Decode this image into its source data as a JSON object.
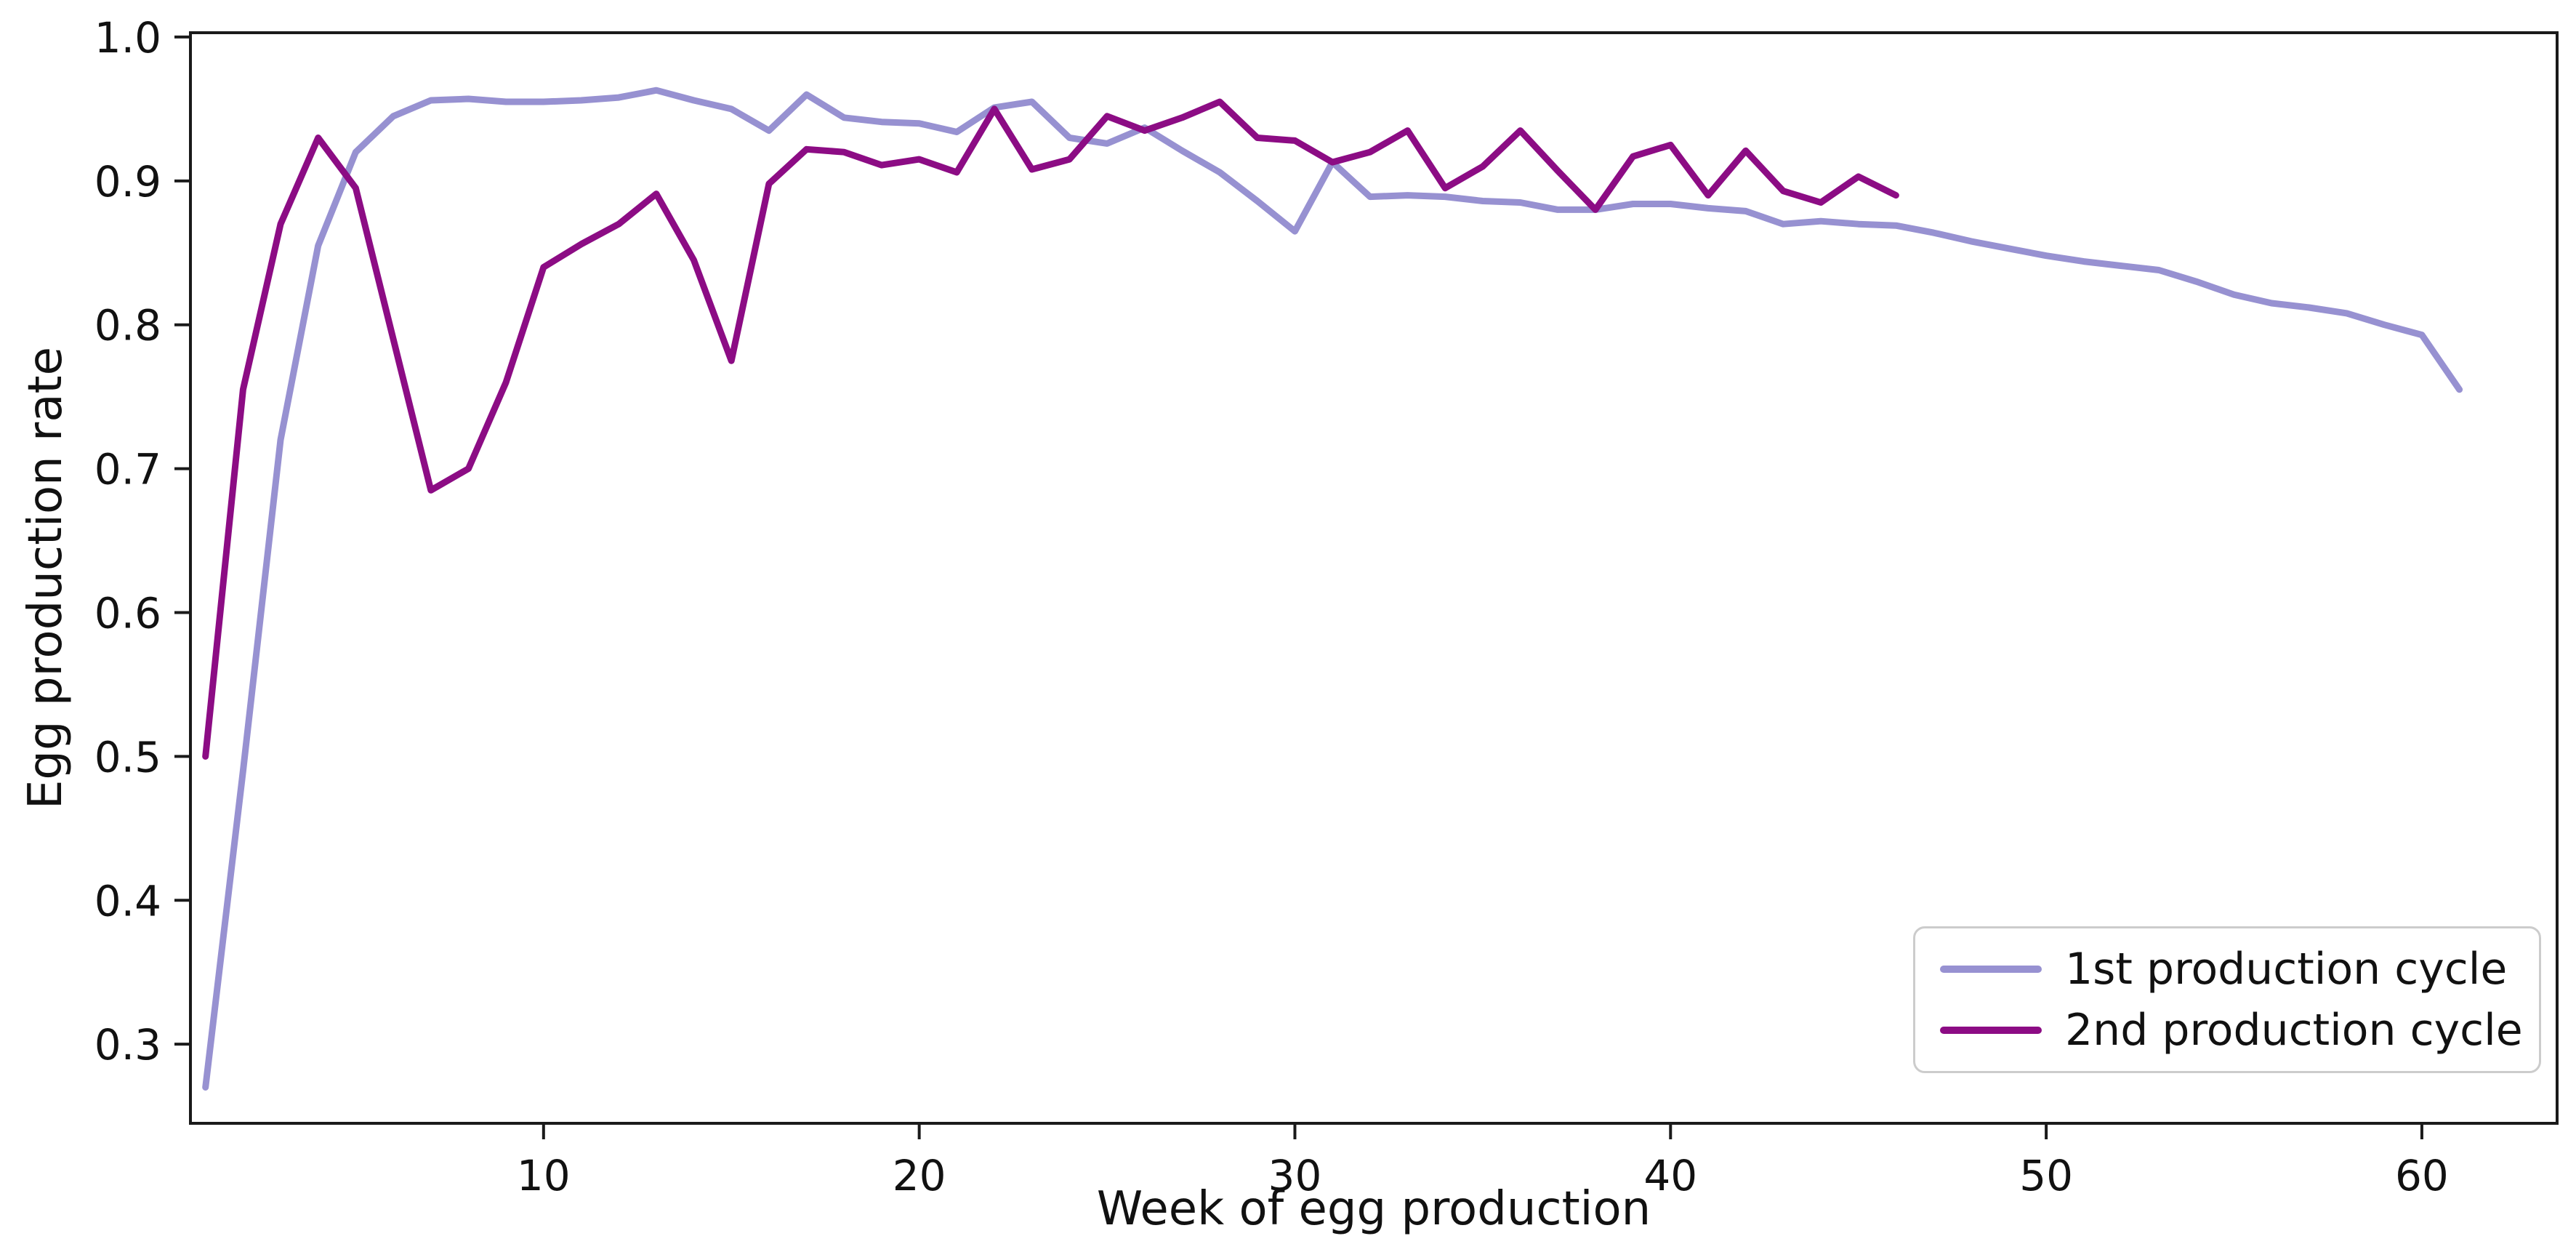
{
  "figure": {
    "background": "#ffffff",
    "spine_color": "#1a1a1a",
    "tick_color": "#1a1a1a",
    "text_color": "#111111",
    "legend_border_color": "#cccccc"
  },
  "chart_data": {
    "type": "line",
    "title": "",
    "xlabel": "Week of egg production",
    "ylabel": "Egg production rate",
    "xlim": [
      0.6,
      63.6
    ],
    "ylim": [
      0.245,
      1.003
    ],
    "x_ticks": [
      10,
      20,
      30,
      40,
      50,
      60
    ],
    "y_ticks": [
      0.3,
      0.4,
      0.5,
      0.6,
      0.7,
      0.8,
      0.9,
      1.0
    ],
    "grid": false,
    "legend_position": "lower right",
    "series": [
      {
        "name": "1st production cycle",
        "color": "#9791d1",
        "linewidth": 9,
        "x": [
          1,
          2,
          3,
          4,
          5,
          6,
          7,
          8,
          9,
          10,
          11,
          12,
          13,
          14,
          15,
          16,
          17,
          18,
          19,
          20,
          21,
          22,
          23,
          24,
          25,
          26,
          27,
          28,
          29,
          30,
          31,
          32,
          33,
          34,
          35,
          36,
          37,
          38,
          39,
          40,
          41,
          42,
          43,
          44,
          45,
          46,
          47,
          48,
          49,
          50,
          51,
          52,
          53,
          54,
          55,
          56,
          57,
          58,
          59,
          60,
          61
        ],
        "values": [
          0.27,
          0.49,
          0.72,
          0.855,
          0.92,
          0.945,
          0.956,
          0.957,
          0.955,
          0.955,
          0.956,
          0.958,
          0.963,
          0.956,
          0.95,
          0.935,
          0.96,
          0.944,
          0.941,
          0.94,
          0.934,
          0.951,
          0.955,
          0.93,
          0.926,
          0.937,
          0.921,
          0.906,
          0.886,
          0.865,
          0.913,
          0.889,
          0.89,
          0.889,
          0.886,
          0.885,
          0.88,
          0.88,
          0.884,
          0.884,
          0.881,
          0.879,
          0.87,
          0.872,
          0.87,
          0.869,
          0.864,
          0.858,
          0.853,
          0.848,
          0.844,
          0.841,
          0.838,
          0.83,
          0.821,
          0.815,
          0.812,
          0.808,
          0.8,
          0.793,
          0.755
        ]
      },
      {
        "name": "2nd production cycle",
        "color": "#8c0c84",
        "linewidth": 9,
        "x": [
          1,
          2,
          3,
          4,
          5,
          6,
          7,
          8,
          9,
          10,
          11,
          12,
          13,
          14,
          15,
          16,
          17,
          18,
          19,
          20,
          21,
          22,
          23,
          24,
          25,
          26,
          27,
          28,
          29,
          30,
          31,
          32,
          33,
          34,
          35,
          36,
          37,
          38,
          39,
          40,
          41,
          42,
          43,
          44,
          45,
          46
        ],
        "values": [
          0.5,
          0.755,
          0.87,
          0.93,
          0.895,
          0.79,
          0.685,
          0.7,
          0.76,
          0.84,
          0.856,
          0.87,
          0.891,
          0.845,
          0.775,
          0.898,
          0.922,
          0.92,
          0.911,
          0.915,
          0.906,
          0.95,
          0.908,
          0.915,
          0.945,
          0.935,
          0.944,
          0.955,
          0.93,
          0.928,
          0.913,
          0.92,
          0.935,
          0.895,
          0.91,
          0.935,
          0.907,
          0.88,
          0.917,
          0.925,
          0.89,
          0.921,
          0.893,
          0.885,
          0.903,
          0.89
        ]
      }
    ]
  }
}
